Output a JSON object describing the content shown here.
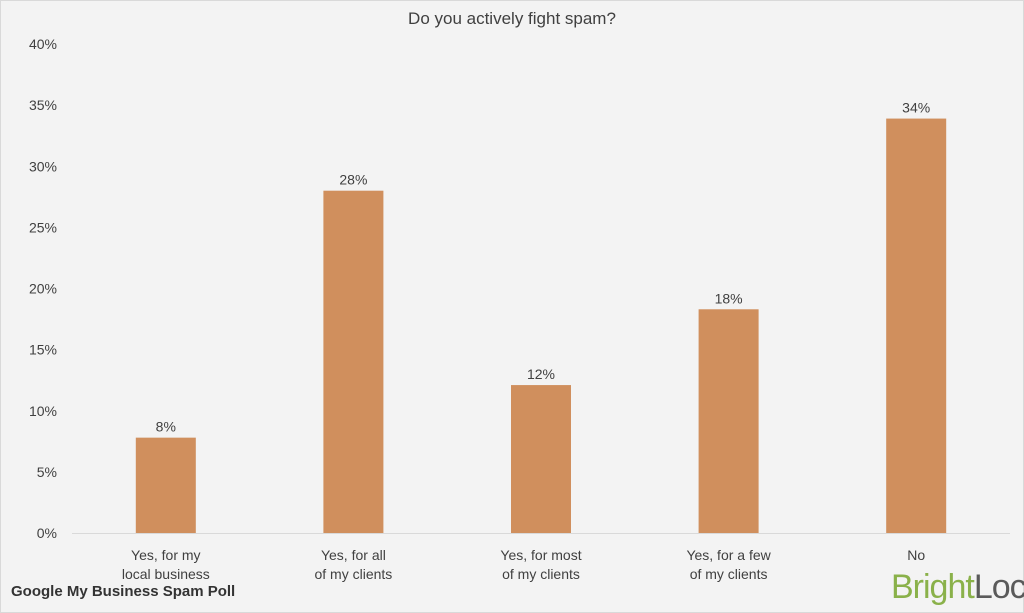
{
  "chart_data": {
    "type": "bar",
    "title": "Do you actively fight spam?",
    "categories": [
      [
        "Yes, for my",
        "local business"
      ],
      [
        "Yes, for all",
        "of my clients"
      ],
      [
        "Yes, for most",
        "of my clients"
      ],
      [
        "Yes, for a few",
        "of my clients"
      ],
      [
        "No"
      ]
    ],
    "values": [
      7.8,
      28.0,
      12.1,
      18.3,
      33.9
    ],
    "data_labels": [
      "8%",
      "28%",
      "12%",
      "18%",
      "34%"
    ],
    "ylim": [
      0,
      40
    ],
    "yticks": [
      0,
      5,
      10,
      15,
      20,
      25,
      30,
      35,
      40
    ],
    "ytick_labels": [
      "0%",
      "5%",
      "10%",
      "15%",
      "20%",
      "25%",
      "30%",
      "35%",
      "40%"
    ],
    "xlabel": "",
    "ylabel": "",
    "grid": false,
    "bar_color": "#d08f5d"
  },
  "footer": {
    "caption": "Google My Business Spam Poll"
  },
  "brand": {
    "part1": "Bright",
    "part2": "Local"
  },
  "colors": {
    "background": "#f3f3f3",
    "axis": "#d9d9d9",
    "text": "#404040",
    "logo_green": "#8ab14a",
    "logo_gray": "#5a5a5a"
  }
}
